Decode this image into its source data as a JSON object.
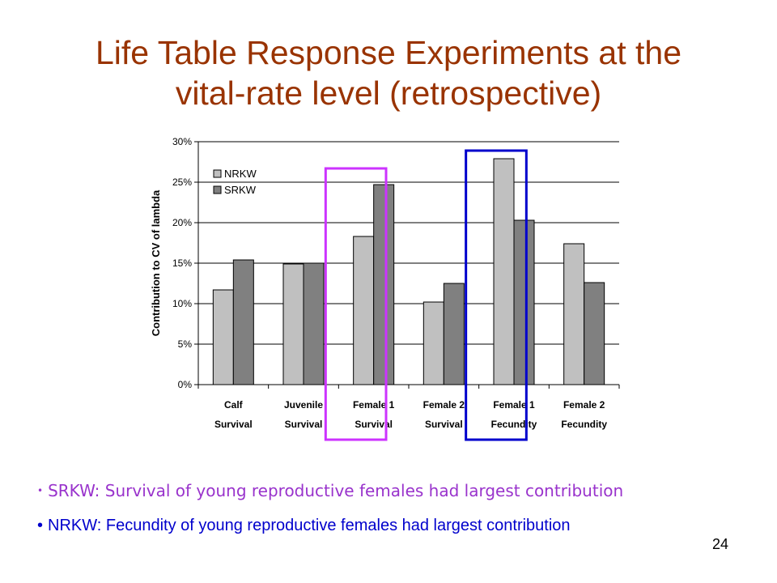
{
  "slide": {
    "title_line1": "Life Table Response Experiments at the",
    "title_line2": "vital-rate level (retrospective)",
    "page_number": "24",
    "title_color": "#993300"
  },
  "bullets": [
    {
      "symbol": "•",
      "text": "SRKW: Survival of young reproductive females had largest contribution",
      "color": "#9933CC"
    },
    {
      "symbol": "•",
      "text": "NRKW: Fecundity of young reproductive females had largest contribution",
      "color": "#0000CC"
    }
  ],
  "highlights": [
    {
      "category_index": 2,
      "color": "#CC33FF"
    },
    {
      "category_index": 4,
      "color": "#0000CC"
    }
  ],
  "chart_data": {
    "type": "bar",
    "title": "",
    "xlabel": "",
    "ylabel": "Contribution to CV of lambda",
    "categories": [
      [
        "Calf",
        "Survival"
      ],
      [
        "Juvenile",
        "Survival"
      ],
      [
        "Female 1",
        "Survival"
      ],
      [
        "Female 2",
        "Survival"
      ],
      [
        "Female 1",
        "Fecundity"
      ],
      [
        "Female 2",
        "Fecundity"
      ]
    ],
    "series": [
      {
        "name": "NRKW",
        "values": [
          11.7,
          14.9,
          18.3,
          10.2,
          27.9,
          17.4
        ],
        "color": "#C0C0C0"
      },
      {
        "name": "SRKW",
        "values": [
          15.4,
          15.0,
          24.7,
          12.5,
          20.3,
          12.6
        ],
        "color": "#808080"
      }
    ],
    "ylim": [
      0,
      30
    ],
    "yticks": [
      "0%",
      "5%",
      "10%",
      "15%",
      "20%",
      "25%",
      "30%"
    ],
    "grid": true,
    "legend": "top-left"
  }
}
